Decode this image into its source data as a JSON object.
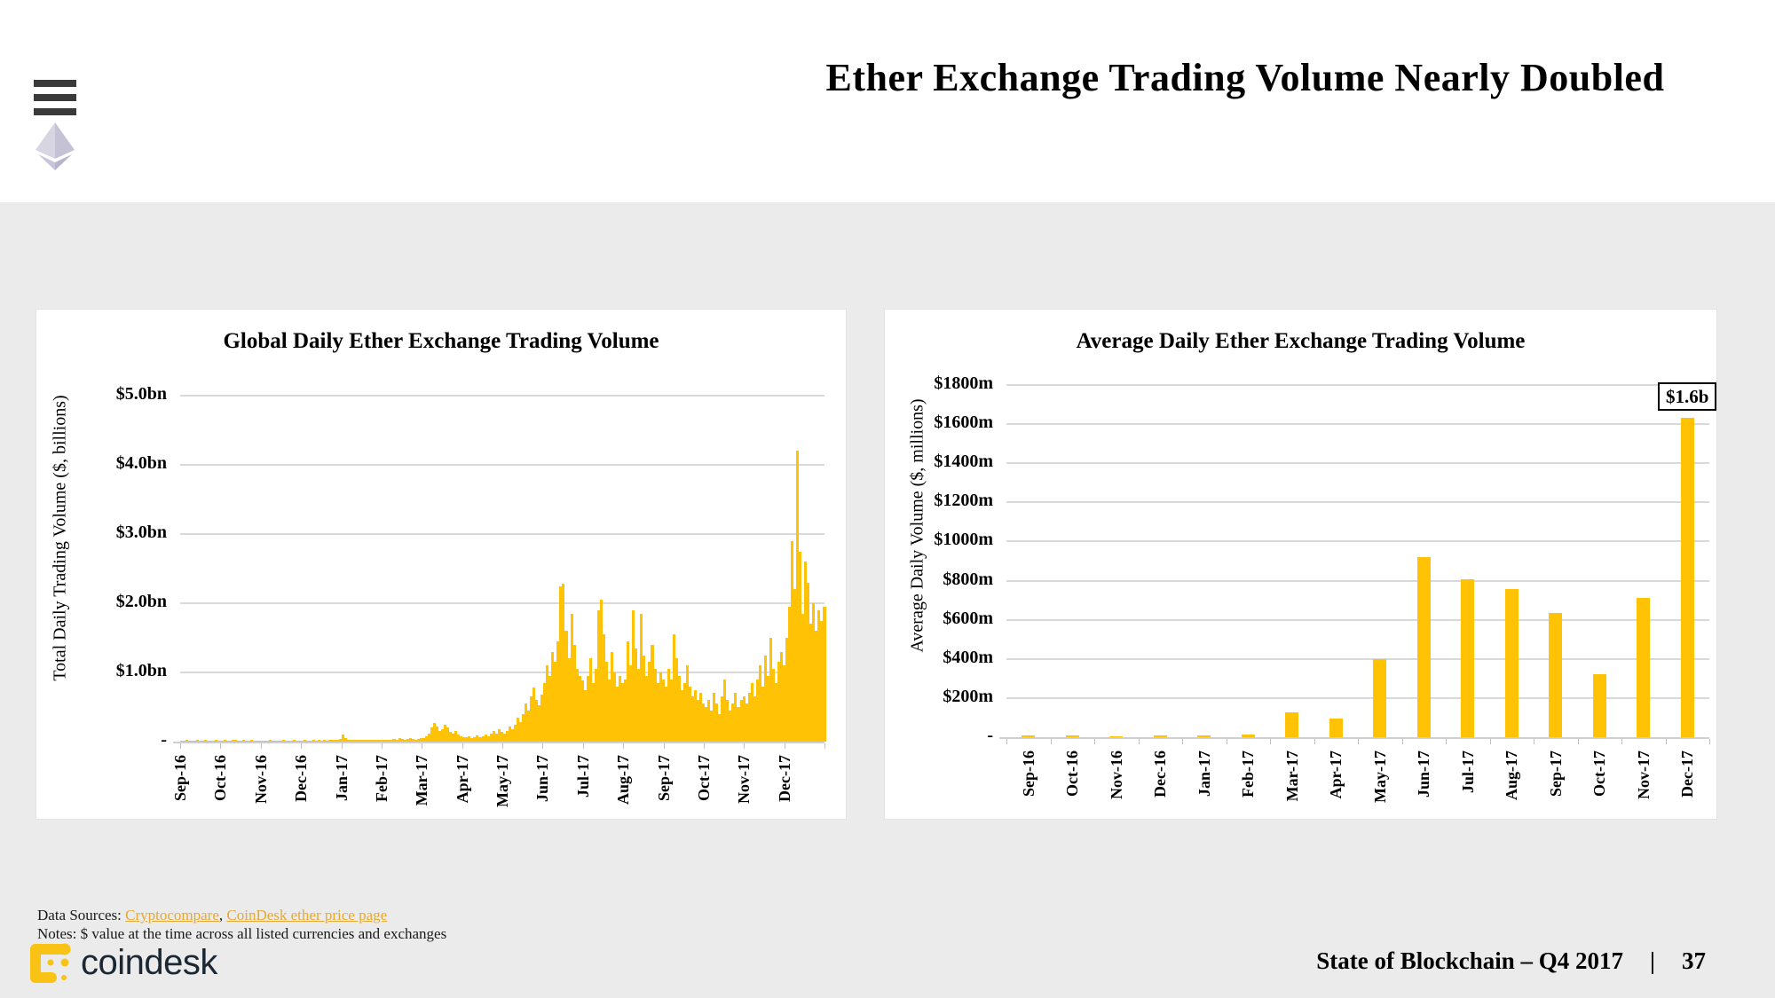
{
  "header": {
    "title": "Ether Exchange Trading Volume Nearly Doubled"
  },
  "chart_data": [
    {
      "type": "area",
      "title": "Global Daily Ether Exchange Trading Volume",
      "ylabel": "Total Daily Trading Volume ($, billions)",
      "xlabel": "",
      "unit": "$ billions",
      "frequency": "daily (approx. 2-day samples)",
      "ylim": [
        0,
        5
      ],
      "grid": true,
      "y_tick_labels": [
        "$5.0bn",
        "$4.0bn",
        "$3.0bn",
        "$2.0bn",
        "$1.0bn",
        "-"
      ],
      "x_tick_labels": [
        "Sep-16",
        "Oct-16",
        "Nov-16",
        "Dec-16",
        "Jan-17",
        "Feb-17",
        "Mar-17",
        "Apr-17",
        "May-17",
        "Jun-17",
        "Jul-17",
        "Aug-17",
        "Sep-17",
        "Oct-17",
        "Nov-17",
        "Dec-17"
      ],
      "bar_color": "#FFC204",
      "values": [
        0.01,
        0.01,
        0.02,
        0.01,
        0.01,
        0.01,
        0.02,
        0.01,
        0.01,
        0.02,
        0.01,
        0.01,
        0.01,
        0.02,
        0.01,
        0.01,
        0.02,
        0.01,
        0.01,
        0.03,
        0.02,
        0.01,
        0.01,
        0.02,
        0.01,
        0.01,
        0.02,
        0.01,
        0.01,
        0.01,
        0.01,
        0.01,
        0.01,
        0.02,
        0.01,
        0.01,
        0.01,
        0.01,
        0.02,
        0.01,
        0.01,
        0.01,
        0.02,
        0.01,
        0.01,
        0.01,
        0.02,
        0.01,
        0.01,
        0.02,
        0.01,
        0.02,
        0.01,
        0.02,
        0.01,
        0.02,
        0.03,
        0.02,
        0.03,
        0.04,
        0.1,
        0.05,
        0.03,
        0.02,
        0.03,
        0.02,
        0.02,
        0.03,
        0.02,
        0.03,
        0.02,
        0.02,
        0.03,
        0.02,
        0.02,
        0.02,
        0.03,
        0.02,
        0.03,
        0.04,
        0.03,
        0.05,
        0.04,
        0.03,
        0.04,
        0.05,
        0.04,
        0.03,
        0.04,
        0.05,
        0.05,
        0.08,
        0.12,
        0.2,
        0.27,
        0.22,
        0.15,
        0.18,
        0.25,
        0.2,
        0.14,
        0.12,
        0.15,
        0.1,
        0.08,
        0.07,
        0.06,
        0.08,
        0.05,
        0.06,
        0.09,
        0.07,
        0.08,
        0.1,
        0.08,
        0.12,
        0.15,
        0.11,
        0.18,
        0.14,
        0.12,
        0.16,
        0.22,
        0.18,
        0.25,
        0.35,
        0.28,
        0.4,
        0.55,
        0.45,
        0.65,
        0.78,
        0.6,
        0.52,
        0.68,
        0.85,
        1.1,
        0.95,
        1.3,
        1.15,
        1.45,
        2.25,
        2.28,
        1.6,
        1.2,
        1.85,
        1.4,
        1.05,
        0.95,
        0.88,
        0.75,
        0.95,
        1.2,
        0.85,
        1.05,
        1.9,
        2.05,
        1.55,
        1.15,
        0.9,
        1.3,
        1.0,
        0.8,
        0.95,
        0.85,
        0.9,
        1.45,
        1.1,
        1.9,
        1.35,
        1.05,
        1.85,
        1.25,
        0.95,
        1.15,
        1.4,
        1.05,
        0.85,
        1.0,
        0.9,
        0.8,
        1.05,
        0.9,
        1.55,
        1.2,
        0.95,
        0.75,
        0.85,
        1.1,
        0.8,
        0.65,
        0.75,
        0.6,
        0.7,
        0.55,
        0.5,
        0.6,
        0.45,
        0.7,
        0.55,
        0.4,
        0.65,
        0.9,
        0.6,
        0.45,
        0.55,
        0.7,
        0.5,
        0.6,
        0.65,
        0.55,
        0.7,
        0.85,
        0.65,
        0.9,
        1.1,
        0.8,
        1.25,
        0.95,
        1.5,
        1.05,
        0.85,
        1.15,
        1.3,
        1.1,
        1.5,
        1.95,
        2.9,
        2.2,
        4.2,
        2.75,
        1.85,
        2.6,
        2.3,
        1.7,
        2.0,
        1.6,
        1.9,
        1.75,
        1.95
      ]
    },
    {
      "type": "bar",
      "title": "Average Daily Ether Exchange Trading Volume",
      "ylabel": "Average Daily Volume ($, millions)",
      "xlabel": "",
      "unit": "$ millions",
      "ylim": [
        0,
        1800
      ],
      "grid": true,
      "y_tick_labels": [
        "$1800m",
        "$1600m",
        "$1400m",
        "$1200m",
        "$1000m",
        "$800m",
        "$600m",
        "$400m",
        "$200m",
        "-"
      ],
      "categories": [
        "Sep-16",
        "Oct-16",
        "Nov-16",
        "Dec-16",
        "Jan-17",
        "Feb-17",
        "Mar-17",
        "Apr-17",
        "May-17",
        "Jun-17",
        "Jul-17",
        "Aug-17",
        "Sep-17",
        "Oct-17",
        "Nov-17",
        "Dec-17"
      ],
      "values": [
        7,
        8,
        4,
        7,
        8,
        15,
        125,
        95,
        400,
        920,
        805,
        755,
        635,
        320,
        710,
        1632
      ],
      "annotation": {
        "text": "$1.6b",
        "category": "Dec-17"
      },
      "bar_color": "#FFC204",
      "legend": "none"
    }
  ],
  "footer": {
    "sources_label": "Data Sources: ",
    "link1": "Cryptocompare",
    "link_sep": ", ",
    "link2": "CoinDesk ether price page",
    "notes": "Notes: $ value at the time across all listed currencies and exchanges",
    "report": "State of Blockchain – Q4 2017",
    "divider": "|",
    "page": "37"
  },
  "brand": {
    "name": "coindesk"
  },
  "colors": {
    "accent_gold": "#FFC204",
    "link_gold": "#E7A930",
    "grid_gray": "#D9D9D9",
    "body_gray": "#EBEBEB",
    "brand_navy": "#1B2733",
    "eth_logo_gray": "#C8C4D8"
  }
}
